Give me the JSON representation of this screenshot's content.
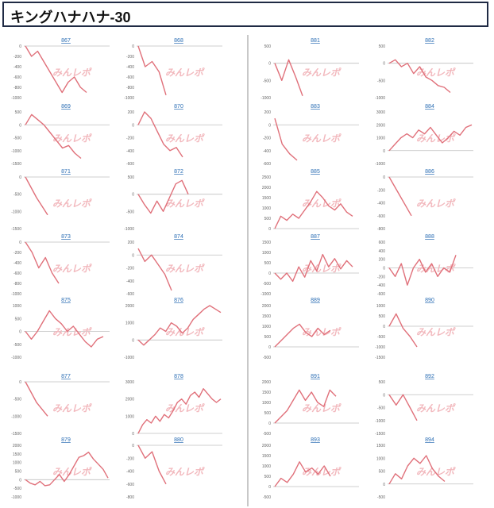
{
  "header": {
    "title": "キングハナハナ-30"
  },
  "watermark": "みんレポ",
  "colors": {
    "line": "#e0707a",
    "axis": "#bfbfbf",
    "tick": "#666666",
    "title": "#2a6db4"
  },
  "chart_data": [
    {
      "type": "line",
      "title": "867",
      "ylim": [
        -1000,
        0
      ],
      "ticks": [
        0,
        -200,
        -400,
        -600,
        -800,
        -1000
      ],
      "tickLabels": [
        "0",
        "-200",
        "-400",
        "-600",
        "-800",
        "-1000"
      ],
      "values": [
        0,
        -200,
        -100,
        -300,
        -500,
        -700,
        -900,
        -700,
        -600,
        -800,
        -900
      ]
    },
    {
      "type": "line",
      "title": "868",
      "ylim": [
        -1000,
        0
      ],
      "ticks": [
        0,
        -200,
        -400,
        -600,
        -800,
        -1000
      ],
      "tickLabels": [
        "0",
        "-200",
        "-400",
        "-600",
        "-800",
        "-1000"
      ],
      "values": [
        0,
        -400,
        -300,
        -500,
        -950
      ]
    },
    {
      "type": "line",
      "title": "869",
      "ylim": [
        -1500,
        500
      ],
      "ticks": [
        500,
        0,
        -500,
        -1000,
        -1500
      ],
      "tickLabels": [
        "500",
        "0",
        "-500",
        "-1000",
        "-1500"
      ],
      "values": [
        0,
        400,
        200,
        0,
        -300,
        -600,
        -900,
        -800,
        -1100,
        -1300
      ]
    },
    {
      "type": "line",
      "title": "870",
      "ylim": [
        -600,
        200
      ],
      "ticks": [
        200,
        0,
        -200,
        -400,
        -600
      ],
      "tickLabels": [
        "200",
        "0",
        "-200",
        "-400",
        "-600"
      ],
      "values": [
        0,
        200,
        100,
        -100,
        -300,
        -400,
        -350,
        -500
      ]
    },
    {
      "type": "line",
      "title": "871",
      "ylim": [
        -1500,
        0
      ],
      "ticks": [
        0,
        -500,
        -1000,
        -1500
      ],
      "tickLabels": [
        "0",
        "-500",
        "-1000",
        "-1500"
      ],
      "values": [
        0,
        -600,
        -1100
      ]
    },
    {
      "type": "line",
      "title": "872",
      "ylim": [
        -1000,
        500
      ],
      "ticks": [
        500,
        0,
        -500,
        -1000
      ],
      "tickLabels": [
        "500",
        "0",
        "-500",
        "-1000"
      ],
      "values": [
        0,
        -300,
        -550,
        -200,
        -500,
        -100,
        300,
        400,
        0
      ]
    },
    {
      "type": "line",
      "title": "873",
      "ylim": [
        -1000,
        0
      ],
      "ticks": [
        0,
        -200,
        -400,
        -600,
        -800,
        -1000
      ],
      "tickLabels": [
        "0",
        "-200",
        "-400",
        "-600",
        "-800",
        "-1000"
      ],
      "values": [
        0,
        -200,
        -500,
        -300,
        -600,
        -800
      ]
    },
    {
      "type": "line",
      "title": "874",
      "ylim": [
        -600,
        200
      ],
      "ticks": [
        200,
        0,
        -200,
        -400,
        -600
      ],
      "tickLabels": [
        "200",
        "0",
        "-200",
        "-400",
        "-600"
      ],
      "values": [
        100,
        -100,
        0,
        -150,
        -300,
        -550
      ]
    },
    {
      "type": "line",
      "title": "875",
      "ylim": [
        -1000,
        1000
      ],
      "ticks": [
        1000,
        500,
        0,
        -500,
        -1000
      ],
      "tickLabels": [
        "1000",
        "500",
        "0",
        "-500",
        "-1000"
      ],
      "values": [
        0,
        -300,
        0,
        400,
        800,
        500,
        300,
        0,
        200,
        -100,
        -400,
        -600,
        -300,
        -200
      ]
    },
    {
      "type": "line",
      "title": "876",
      "ylim": [
        -1000,
        2000
      ],
      "ticks": [
        2000,
        1000,
        0,
        -1000
      ],
      "tickLabels": [
        "2000",
        "1000",
        "0",
        "-1000"
      ],
      "values": [
        0,
        -300,
        0,
        300,
        700,
        500,
        1000,
        800,
        400,
        700,
        1200,
        1500,
        1800,
        2000,
        1800,
        1600
      ]
    },
    {
      "type": "line",
      "title": "877",
      "ylim": [
        -1500,
        0
      ],
      "ticks": [
        0,
        -500,
        -1000,
        -1500
      ],
      "tickLabels": [
        "0",
        "-500",
        "-1000",
        "-1500"
      ],
      "values": [
        0,
        -600,
        -1000
      ]
    },
    {
      "type": "line",
      "title": "878",
      "ylim": [
        0,
        3000
      ],
      "ticks": [
        3000,
        2000,
        1000,
        0
      ],
      "tickLabels": [
        "3000",
        "2000",
        "1000",
        "0"
      ],
      "values": [
        0,
        500,
        800,
        600,
        1000,
        700,
        1100,
        900,
        1300,
        1800,
        2000,
        1700,
        2200,
        2400,
        2100,
        2600,
        2300,
        2000,
        1800,
        2000
      ]
    },
    {
      "type": "line",
      "title": "879",
      "ylim": [
        -1000,
        2000
      ],
      "ticks": [
        2000,
        1500,
        1000,
        500,
        0,
        -500,
        -1000
      ],
      "tickLabels": [
        "2000",
        "1500",
        "1000",
        "500",
        "0",
        "-500",
        "-1000"
      ],
      "values": [
        0,
        -200,
        -300,
        -100,
        -350,
        -300,
        0,
        300,
        -100,
        300,
        800,
        1300,
        1400,
        1600,
        1200,
        900,
        600,
        100
      ]
    },
    {
      "type": "line",
      "title": "880",
      "ylim": [
        -800,
        0
      ],
      "ticks": [
        0,
        -200,
        -400,
        -600,
        -800
      ],
      "tickLabels": [
        "0",
        "-200",
        "-400",
        "-600",
        "-800"
      ],
      "values": [
        0,
        -200,
        -100,
        -400,
        -600
      ]
    },
    {
      "type": "line",
      "title": "881",
      "ylim": [
        -1000,
        500
      ],
      "ticks": [
        500,
        0,
        -500,
        -1000
      ],
      "tickLabels": [
        "500",
        "0",
        "-500",
        "-1000"
      ],
      "values": [
        0,
        -500,
        100,
        -400,
        -950
      ]
    },
    {
      "type": "line",
      "title": "882",
      "ylim": [
        -1000,
        500
      ],
      "ticks": [
        500,
        0,
        -500,
        -1000
      ],
      "tickLabels": [
        "500",
        "0",
        "-500",
        "-1000"
      ],
      "values": [
        0,
        100,
        -100,
        0,
        -300,
        -100,
        -400,
        -500,
        -650,
        -700,
        -850
      ]
    },
    {
      "type": "line",
      "title": "883",
      "ylim": [
        -600,
        200
      ],
      "ticks": [
        200,
        0,
        -200,
        -400,
        -600
      ],
      "tickLabels": [
        "200",
        "0",
        "-200",
        "-400",
        "-600"
      ],
      "values": [
        100,
        -300,
        -450,
        -550
      ]
    },
    {
      "type": "line",
      "title": "884",
      "ylim": [
        -1000,
        3000
      ],
      "ticks": [
        3000,
        2000,
        1000,
        0,
        -1000
      ],
      "tickLabels": [
        "3000",
        "2000",
        "1000",
        "0",
        "-1000"
      ],
      "values": [
        0,
        500,
        1000,
        1300,
        1000,
        1600,
        1300,
        1800,
        1200,
        600,
        1000,
        1500,
        1200,
        1800,
        2000
      ]
    },
    {
      "type": "line",
      "title": "885",
      "ylim": [
        0,
        2500
      ],
      "ticks": [
        2500,
        2000,
        1500,
        1000,
        500,
        0
      ],
      "tickLabels": [
        "2500",
        "2000",
        "1500",
        "1000",
        "500",
        "0"
      ],
      "values": [
        0,
        600,
        400,
        700,
        500,
        900,
        1300,
        1800,
        1500,
        1100,
        900,
        1200,
        800,
        600
      ]
    },
    {
      "type": "line",
      "title": "886",
      "ylim": [
        -800,
        0
      ],
      "ticks": [
        0,
        -200,
        -400,
        -600,
        -800
      ],
      "tickLabels": [
        "0",
        "-200",
        "-400",
        "-600",
        "-800"
      ],
      "values": [
        0,
        -300,
        -600
      ]
    },
    {
      "type": "line",
      "title": "887",
      "ylim": [
        -1000,
        1500
      ],
      "ticks": [
        1500,
        1000,
        500,
        0,
        -500,
        -1000
      ],
      "tickLabels": [
        "1500",
        "1000",
        "500",
        "0",
        "-500",
        "-1000"
      ],
      "values": [
        0,
        -300,
        0,
        -400,
        300,
        -200,
        600,
        100,
        900,
        300,
        700,
        200,
        600,
        300
      ]
    },
    {
      "type": "line",
      "title": "888",
      "ylim": [
        -600,
        600
      ],
      "ticks": [
        600,
        400,
        200,
        0,
        -200,
        -400,
        -600
      ],
      "tickLabels": [
        "600",
        "400",
        "200",
        "0",
        "-200",
        "-400",
        "-600"
      ],
      "values": [
        0,
        -200,
        100,
        -400,
        0,
        200,
        -100,
        100,
        -200,
        0,
        -100,
        300
      ]
    },
    {
      "type": "line",
      "title": "889",
      "ylim": [
        -500,
        2000
      ],
      "ticks": [
        2000,
        1500,
        1000,
        500,
        0,
        -500
      ],
      "tickLabels": [
        "2000",
        "1500",
        "1000",
        "500",
        "0",
        "-500"
      ],
      "values": [
        0,
        300,
        600,
        900,
        1100,
        700,
        500,
        900,
        600,
        800
      ]
    },
    {
      "type": "line",
      "title": "890",
      "ylim": [
        -1500,
        1000
      ],
      "ticks": [
        1000,
        500,
        0,
        -500,
        -1000,
        -1500
      ],
      "tickLabels": [
        "1000",
        "500",
        "0",
        "-500",
        "-1000",
        "-1500"
      ],
      "values": [
        0,
        600,
        -100,
        -500,
        -1000
      ]
    },
    {
      "type": "line",
      "title": "891",
      "ylim": [
        -500,
        2000
      ],
      "ticks": [
        2000,
        1500,
        1000,
        500,
        0,
        -500
      ],
      "tickLabels": [
        "2000",
        "1500",
        "1000",
        "500",
        "0",
        "-500"
      ],
      "values": [
        0,
        300,
        600,
        1100,
        1600,
        1100,
        1500,
        1000,
        800,
        1600,
        1300
      ]
    },
    {
      "type": "line",
      "title": "892",
      "ylim": [
        -1500,
        500
      ],
      "ticks": [
        500,
        0,
        -500,
        -1000,
        -1500
      ],
      "tickLabels": [
        "500",
        "0",
        "-500",
        "-1000",
        "-1500"
      ],
      "values": [
        0,
        -400,
        0,
        -500,
        -1000
      ]
    },
    {
      "type": "line",
      "title": "893",
      "ylim": [
        -500,
        2000
      ],
      "ticks": [
        2000,
        1500,
        1000,
        500,
        0,
        -500
      ],
      "tickLabels": [
        "2000",
        "1500",
        "1000",
        "500",
        "0",
        "-500"
      ],
      "values": [
        0,
        400,
        200,
        600,
        1200,
        700,
        900,
        600,
        1000,
        500
      ]
    },
    {
      "type": "line",
      "title": "894",
      "ylim": [
        -500,
        1500
      ],
      "ticks": [
        1500,
        1000,
        500,
        0,
        -500
      ],
      "tickLabels": [
        "1500",
        "1000",
        "500",
        "0",
        "-500"
      ],
      "values": [
        0,
        400,
        200,
        700,
        1000,
        800,
        1100,
        600,
        300,
        100
      ]
    }
  ]
}
